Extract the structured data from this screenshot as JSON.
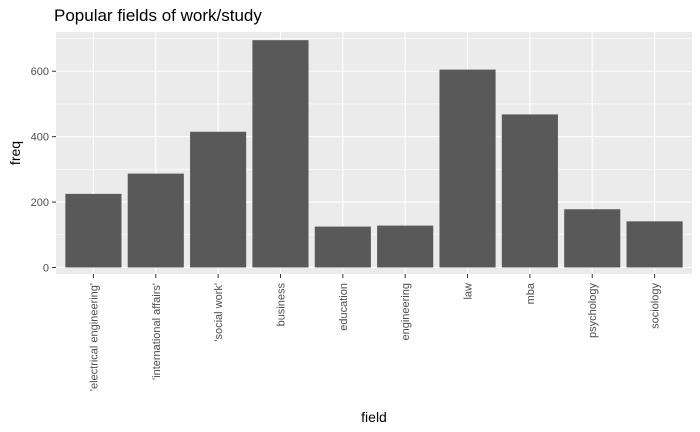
{
  "chart_data": {
    "type": "bar",
    "title": "Popular fields of work/study",
    "xlabel": "field",
    "ylabel": "freq",
    "categories": [
      "'electrical engineering'",
      "'international affairs'",
      "'social work'",
      "business",
      "education",
      "engineering",
      "law",
      "mba",
      "psychology",
      "sociology"
    ],
    "values": [
      225,
      287,
      415,
      695,
      125,
      128,
      605,
      468,
      178,
      141
    ],
    "ylim": [
      -20,
      720
    ],
    "yticks": [
      0,
      200,
      400,
      600
    ],
    "grid": true,
    "colors": {
      "panel_bg": "#ebebeb",
      "grid_major": "#ffffff",
      "bar_fill": "#595959",
      "tick_color": "#333333"
    }
  }
}
